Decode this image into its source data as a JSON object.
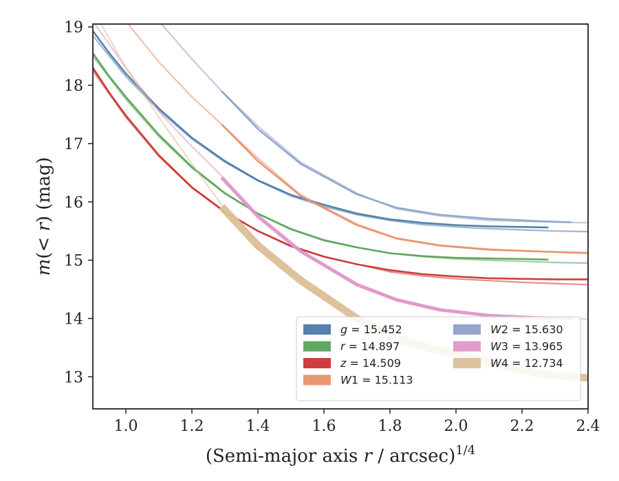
{
  "chart_data": {
    "type": "line",
    "xlabel_main": "(Semi-major axis ",
    "xlabel_var": "r",
    "xlabel_tail": " / arcsec)",
    "xlabel_exp": "1/4",
    "ylabel_pre": "m",
    "ylabel_mid": "(< ",
    "ylabel_var": "r",
    "ylabel_post": ") (mag)",
    "xlim": [
      0.9,
      2.4
    ],
    "ylim": [
      19.05,
      12.45
    ],
    "y_inverted": true,
    "xticks": [
      1.0,
      1.2,
      1.4,
      1.6,
      1.8,
      2.0,
      2.2,
      2.4
    ],
    "xtick_labels": [
      "1.0",
      "1.2",
      "1.4",
      "1.6",
      "1.8",
      "2.0",
      "2.2",
      "2.4"
    ],
    "yticks": [
      13,
      14,
      15,
      16,
      17,
      18,
      19
    ],
    "ytick_labels": [
      "13",
      "14",
      "15",
      "16",
      "17",
      "18",
      "19"
    ],
    "legend_position": "lower-right",
    "grid": false,
    "series": [
      {
        "name": "g = 15.452",
        "band": "g",
        "value": "15.452",
        "italic": "g",
        "sub": "",
        "color": "#4c7aa8",
        "measured_width": 2.6,
        "measured": [
          [
            0.9,
            18.93
          ],
          [
            0.95,
            18.55
          ],
          [
            1.0,
            18.2
          ],
          [
            1.1,
            17.6
          ],
          [
            1.2,
            17.1
          ],
          [
            1.3,
            16.7
          ],
          [
            1.4,
            16.37
          ],
          [
            1.5,
            16.12
          ],
          [
            1.6,
            15.95
          ],
          [
            1.7,
            15.8
          ],
          [
            1.8,
            15.7
          ],
          [
            1.9,
            15.64
          ],
          [
            2.0,
            15.6
          ],
          [
            2.1,
            15.58
          ],
          [
            2.2,
            15.57
          ],
          [
            2.28,
            15.56
          ]
        ],
        "model": [
          [
            0.9,
            18.85
          ],
          [
            1.0,
            18.15
          ],
          [
            1.1,
            17.57
          ],
          [
            1.2,
            17.08
          ],
          [
            1.3,
            16.68
          ],
          [
            1.4,
            16.36
          ],
          [
            1.5,
            16.1
          ],
          [
            1.6,
            15.92
          ],
          [
            1.7,
            15.78
          ],
          [
            1.8,
            15.68
          ],
          [
            1.9,
            15.61
          ],
          [
            2.0,
            15.57
          ],
          [
            2.1,
            15.54
          ],
          [
            2.2,
            15.52
          ],
          [
            2.3,
            15.5
          ],
          [
            2.4,
            15.49
          ]
        ]
      },
      {
        "name": "r = 14.897",
        "band": "r",
        "value": "14.897",
        "italic": "r",
        "sub": "",
        "color": "#5aa35a",
        "measured_width": 2.6,
        "measured": [
          [
            0.9,
            18.55
          ],
          [
            0.95,
            18.15
          ],
          [
            1.0,
            17.8
          ],
          [
            1.1,
            17.15
          ],
          [
            1.2,
            16.6
          ],
          [
            1.3,
            16.15
          ],
          [
            1.4,
            15.8
          ],
          [
            1.5,
            15.53
          ],
          [
            1.6,
            15.34
          ],
          [
            1.7,
            15.22
          ],
          [
            1.8,
            15.12
          ],
          [
            1.9,
            15.07
          ],
          [
            2.0,
            15.04
          ],
          [
            2.1,
            15.03
          ],
          [
            2.2,
            15.02
          ],
          [
            2.28,
            15.01
          ]
        ],
        "model": [
          [
            0.9,
            18.5
          ],
          [
            1.0,
            17.76
          ],
          [
            1.1,
            17.12
          ],
          [
            1.2,
            16.58
          ],
          [
            1.3,
            16.14
          ],
          [
            1.4,
            15.8
          ],
          [
            1.5,
            15.54
          ],
          [
            1.6,
            15.35
          ],
          [
            1.7,
            15.22
          ],
          [
            1.8,
            15.12
          ],
          [
            1.9,
            15.06
          ],
          [
            2.0,
            15.02
          ],
          [
            2.1,
            15.0
          ],
          [
            2.2,
            14.98
          ],
          [
            2.3,
            14.96
          ],
          [
            2.4,
            14.95
          ]
        ]
      },
      {
        "name": "z = 14.509",
        "band": "z",
        "value": "14.509",
        "italic": "z",
        "sub": "",
        "color": "#cc3333",
        "measured_width": 2.6,
        "measured": [
          [
            0.9,
            18.3
          ],
          [
            0.95,
            17.87
          ],
          [
            1.0,
            17.48
          ],
          [
            1.1,
            16.8
          ],
          [
            1.2,
            16.25
          ],
          [
            1.3,
            15.83
          ],
          [
            1.4,
            15.5
          ],
          [
            1.5,
            15.24
          ],
          [
            1.6,
            15.06
          ],
          [
            1.7,
            14.93
          ],
          [
            1.8,
            14.83
          ],
          [
            1.9,
            14.76
          ],
          [
            2.0,
            14.72
          ],
          [
            2.1,
            14.69
          ],
          [
            2.2,
            14.68
          ],
          [
            2.3,
            14.67
          ],
          [
            2.4,
            14.67
          ]
        ],
        "model": [
          [
            0.9,
            18.25
          ],
          [
            1.0,
            17.45
          ],
          [
            1.1,
            16.78
          ],
          [
            1.2,
            16.24
          ],
          [
            1.3,
            15.82
          ],
          [
            1.4,
            15.5
          ],
          [
            1.5,
            15.25
          ],
          [
            1.6,
            15.06
          ],
          [
            1.7,
            14.93
          ],
          [
            1.8,
            14.8
          ],
          [
            1.9,
            14.73
          ],
          [
            2.0,
            14.68
          ],
          [
            2.1,
            14.65
          ],
          [
            2.2,
            14.62
          ],
          [
            2.3,
            14.6
          ],
          [
            2.4,
            14.58
          ]
        ]
      },
      {
        "name": "W1 = 15.113",
        "band": "W1",
        "value": "15.113",
        "italic": "W",
        "sub": "1",
        "color": "#e8906a",
        "measured_width": 2.6,
        "measured": [
          [
            1.29,
            17.33
          ],
          [
            1.4,
            16.7
          ],
          [
            1.53,
            16.1
          ],
          [
            1.7,
            15.6
          ],
          [
            1.82,
            15.37
          ],
          [
            1.95,
            15.25
          ],
          [
            2.1,
            15.18
          ],
          [
            2.25,
            15.15
          ],
          [
            2.4,
            15.12
          ]
        ],
        "model": [
          [
            1.0,
            19.1
          ],
          [
            1.1,
            18.4
          ],
          [
            1.2,
            17.8
          ],
          [
            1.29,
            17.33
          ],
          [
            1.4,
            16.75
          ],
          [
            1.53,
            16.12
          ],
          [
            1.7,
            15.62
          ],
          [
            1.82,
            15.38
          ],
          [
            1.95,
            15.26
          ],
          [
            2.1,
            15.19
          ],
          [
            2.25,
            15.15
          ],
          [
            2.4,
            15.13
          ]
        ]
      },
      {
        "name": "W2 = 15.630",
        "band": "W2",
        "value": "15.630",
        "italic": "W",
        "sub": "2",
        "color": "#8ea2c8",
        "measured_width": 2.6,
        "measured": [
          [
            1.29,
            17.9
          ],
          [
            1.4,
            17.25
          ],
          [
            1.53,
            16.65
          ],
          [
            1.7,
            16.13
          ],
          [
            1.82,
            15.9
          ],
          [
            1.95,
            15.78
          ],
          [
            2.1,
            15.71
          ],
          [
            2.25,
            15.67
          ],
          [
            2.35,
            15.65
          ]
        ],
        "model": [
          [
            1.1,
            19.1
          ],
          [
            1.2,
            18.45
          ],
          [
            1.29,
            17.9
          ],
          [
            1.4,
            17.3
          ],
          [
            1.53,
            16.68
          ],
          [
            1.7,
            16.15
          ],
          [
            1.82,
            15.88
          ],
          [
            1.95,
            15.76
          ],
          [
            2.1,
            15.68
          ],
          [
            2.25,
            15.66
          ],
          [
            2.4,
            15.64
          ]
        ]
      },
      {
        "name": "W3 = 13.965",
        "band": "W3",
        "value": "13.965",
        "italic": "W",
        "sub": "3",
        "color": "#e096c8",
        "measured_width": 5,
        "measured": [
          [
            1.29,
            16.42
          ],
          [
            1.4,
            15.75
          ],
          [
            1.53,
            15.15
          ],
          [
            1.7,
            14.58
          ],
          [
            1.82,
            14.32
          ],
          [
            1.95,
            14.15
          ],
          [
            2.1,
            14.05
          ],
          [
            2.25,
            14.01
          ],
          [
            2.35,
            14.0
          ]
        ],
        "model": [
          [
            0.9,
            19.1
          ],
          [
            1.0,
            18.3
          ],
          [
            1.1,
            17.55
          ],
          [
            1.2,
            16.95
          ],
          [
            1.29,
            16.45
          ],
          [
            1.4,
            15.78
          ],
          [
            1.53,
            15.17
          ],
          [
            1.7,
            14.6
          ],
          [
            1.82,
            14.33
          ],
          [
            1.95,
            14.16
          ],
          [
            2.1,
            14.06
          ],
          [
            2.25,
            14.01
          ],
          [
            2.4,
            13.99
          ]
        ]
      },
      {
        "name": "W4 = 12.734",
        "band": "W4",
        "value": "12.734",
        "italic": "W",
        "sub": "4",
        "color": "#dbbf96",
        "measured_width": 11,
        "measured": [
          [
            1.29,
            15.92
          ],
          [
            1.4,
            15.25
          ],
          [
            1.53,
            14.65
          ],
          [
            1.7,
            14.0
          ],
          [
            1.82,
            13.65
          ],
          [
            1.95,
            13.45
          ],
          [
            2.1,
            13.25
          ],
          [
            2.25,
            13.05
          ],
          [
            2.35,
            13.0
          ],
          [
            2.4,
            12.98
          ]
        ],
        "model": [
          [
            0.9,
            19.3
          ],
          [
            1.0,
            18.3
          ],
          [
            1.1,
            17.45
          ],
          [
            1.2,
            16.65
          ],
          [
            1.29,
            15.95
          ]
        ]
      }
    ]
  }
}
